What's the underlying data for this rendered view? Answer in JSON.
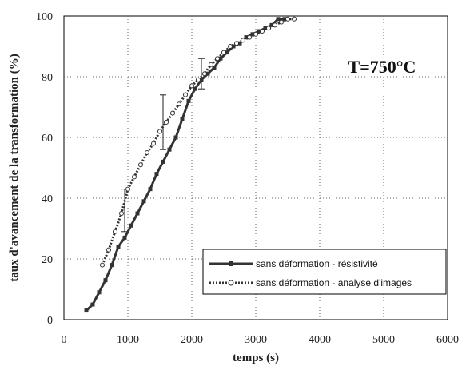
{
  "chart_data": {
    "type": "line",
    "title": "",
    "xlabel": "temps (s)",
    "ylabel": "taux d'avancement de la transformation (%)",
    "xlim": [
      0,
      6000
    ],
    "ylim": [
      0,
      100
    ],
    "xticks": [
      0,
      1000,
      2000,
      3000,
      4000,
      5000,
      6000
    ],
    "yticks": [
      0,
      20,
      40,
      60,
      80,
      100
    ],
    "grid": true,
    "annotation": "T=750°C",
    "legend_position": "bottom-right",
    "series": [
      {
        "name": "sans déformation - résistivité",
        "style": "solid",
        "marker": "filled-square",
        "color": "#333333",
        "x": [
          350,
          450,
          550,
          650,
          750,
          850,
          950,
          1050,
          1150,
          1250,
          1350,
          1450,
          1550,
          1650,
          1750,
          1850,
          1950,
          2050,
          2150,
          2250,
          2350,
          2450,
          2550,
          2650,
          2750,
          2850,
          2950,
          3050,
          3150,
          3250,
          3350,
          3450
        ],
        "y": [
          3,
          5,
          9,
          13,
          18,
          24,
          27,
          31,
          35,
          39,
          43,
          48,
          52,
          56,
          60,
          66,
          72,
          76,
          79,
          81,
          83,
          86,
          88,
          90,
          91,
          93,
          94,
          95,
          96,
          97,
          99,
          99
        ]
      },
      {
        "name": "sans déformation - analyse d'images",
        "style": "dotted",
        "marker": "open-circle",
        "color": "#333333",
        "x": [
          600,
          700,
          800,
          900,
          1000,
          1100,
          1200,
          1300,
          1400,
          1500,
          1600,
          1700,
          1800,
          1900,
          2000,
          2100,
          2200,
          2300,
          2400,
          2500,
          2600,
          2700,
          2800,
          2900,
          3000,
          3100,
          3200,
          3300,
          3400,
          3500,
          3600
        ],
        "y": [
          18,
          23,
          29,
          35,
          43,
          47,
          51,
          55,
          58,
          62,
          65,
          68,
          71,
          74,
          77,
          79,
          81,
          84,
          86,
          88,
          90,
          91,
          92,
          93,
          94,
          95,
          96,
          97,
          98,
          99,
          99
        ]
      }
    ],
    "error_bars": [
      {
        "x": 950,
        "y_low": 29,
        "y_high": 43
      },
      {
        "x": 1550,
        "y_low": 56,
        "y_high": 74
      },
      {
        "x": 2150,
        "y_low": 76,
        "y_high": 86
      }
    ]
  }
}
